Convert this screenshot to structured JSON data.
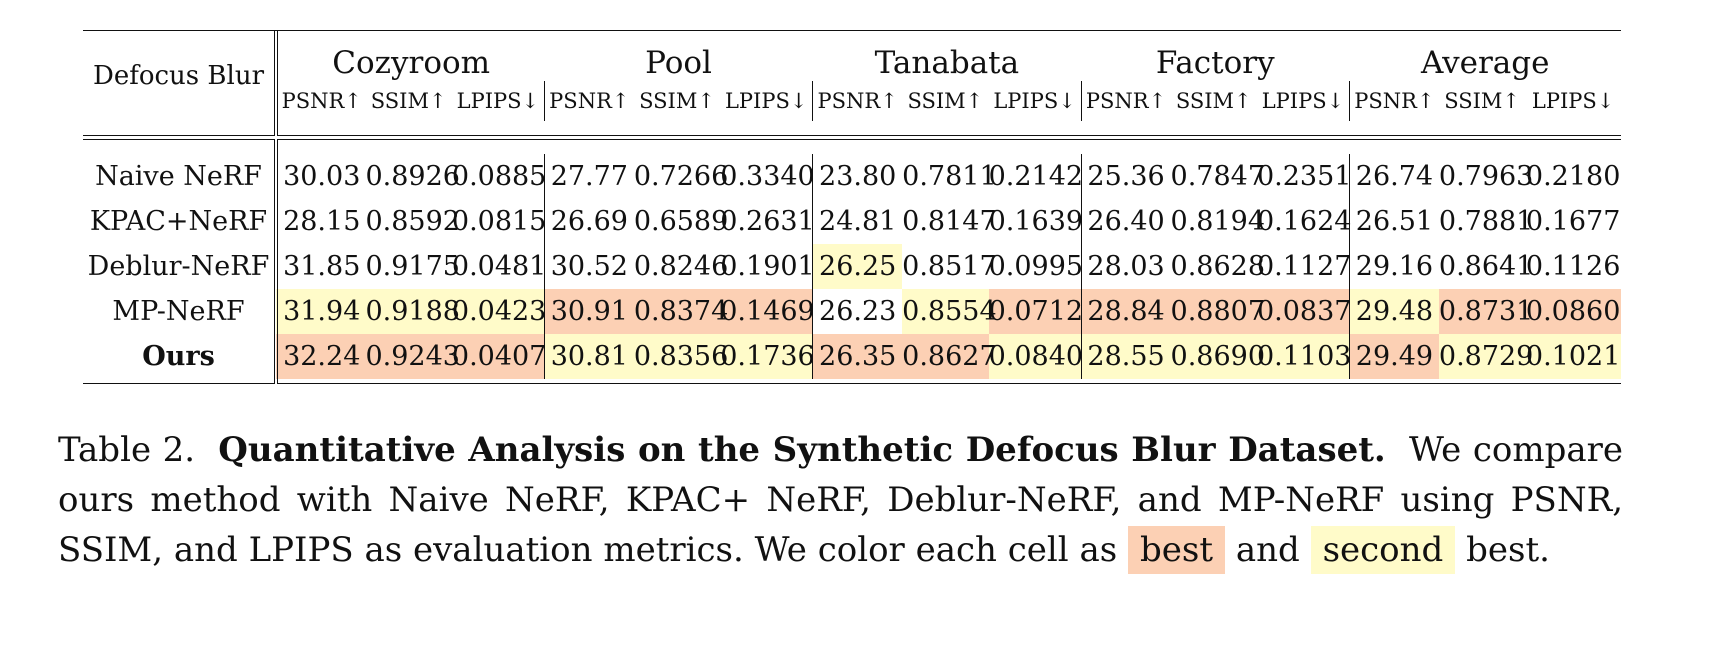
{
  "table": {
    "method_header": "Defocus Blur",
    "scenes": [
      "Cozyroom",
      "Pool",
      "Tanabata",
      "Factory",
      "Average"
    ],
    "metrics": [
      "PSNR↑",
      "SSIM↑",
      "LPIPS↓"
    ],
    "rows": [
      {
        "method": "Naive NeRF",
        "values": [
          "30.03",
          "0.8926",
          "0.0885",
          "27.77",
          "0.7266",
          "0.3340",
          "23.80",
          "0.7811",
          "0.2142",
          "25.36",
          "0.7847",
          "0.2351",
          "26.74",
          "0.7963",
          "0.2180"
        ],
        "highlight": [
          "",
          "",
          "",
          "",
          "",
          "",
          "",
          "",
          "",
          "",
          "",
          "",
          "",
          "",
          ""
        ]
      },
      {
        "method": "KPAC+NeRF",
        "values": [
          "28.15",
          "0.8592",
          "0.0815",
          "26.69",
          "0.6589",
          "0.2631",
          "24.81",
          "0.8147",
          "0.1639",
          "26.40",
          "0.8194",
          "0.1624",
          "26.51",
          "0.7881",
          "0.1677"
        ],
        "highlight": [
          "",
          "",
          "",
          "",
          "",
          "",
          "",
          "",
          "",
          "",
          "",
          "",
          "",
          "",
          ""
        ]
      },
      {
        "method": "Deblur-NeRF",
        "values": [
          "31.85",
          "0.9175",
          "0.0481",
          "30.52",
          "0.8246",
          "0.1901",
          "26.25",
          "0.8517",
          "0.0995",
          "28.03",
          "0.8628",
          "0.1127",
          "29.16",
          "0.8641",
          "0.1126"
        ],
        "highlight": [
          "",
          "",
          "",
          "",
          "",
          "",
          "second",
          "",
          "",
          "",
          "",
          "",
          "",
          "",
          ""
        ]
      },
      {
        "method": "MP-NeRF",
        "values": [
          "31.94",
          "0.9188",
          "0.0423",
          "30.91",
          "0.8374",
          "0.1469",
          "26.23",
          "0.8554",
          "0.0712",
          "28.84",
          "0.8807",
          "0.0837",
          "29.48",
          "0.8731",
          "0.0860"
        ],
        "highlight": [
          "second",
          "second",
          "second",
          "best",
          "best",
          "best",
          "",
          "second",
          "best",
          "best",
          "best",
          "best",
          "second",
          "best",
          "best"
        ]
      },
      {
        "method": "Ours",
        "values": [
          "32.24",
          "0.9243",
          "0.0407",
          "30.81",
          "0.8356",
          "0.1736",
          "26.35",
          "0.8627",
          "0.0840",
          "28.55",
          "0.8690",
          "0.1103",
          "29.49",
          "0.8729",
          "0.1021"
        ],
        "highlight": [
          "best",
          "best",
          "best",
          "second",
          "second",
          "second",
          "best",
          "best",
          "second",
          "second",
          "second",
          "second",
          "best",
          "second",
          "second"
        ]
      }
    ],
    "colors": {
      "best": "#fcd0b4",
      "second": "#fffbc9"
    }
  },
  "caption": {
    "label": "Table 2.",
    "title": "Quantitative Analysis on the Synthetic Defocus Blur Dataset.",
    "text_1": "We compare ours method with Naive NeRF, KPAC+ NeRF, Deblur-NeRF, and MP-NeRF using PSNR, SSIM, and LPIPS as evaluation metrics. We color each cell as",
    "best_label": "best",
    "text_2": "and",
    "second_label": "second",
    "text_3": "best."
  }
}
